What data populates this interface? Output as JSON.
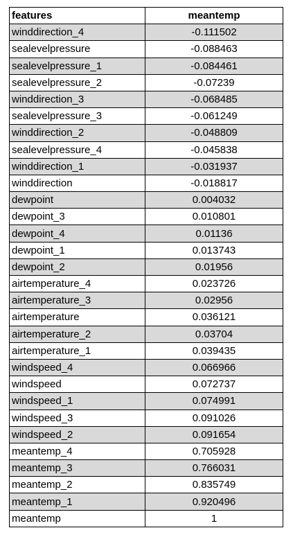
{
  "table": {
    "headers": [
      "features",
      "meantemp"
    ],
    "rows": [
      [
        "winddirection_4",
        "-0.111502"
      ],
      [
        "sealevelpressure",
        "-0.088463"
      ],
      [
        "sealevelpressure_1",
        "-0.084461"
      ],
      [
        "sealevelpressure_2",
        "-0.07239"
      ],
      [
        "winddirection_3",
        "-0.068485"
      ],
      [
        "sealevelpressure_3",
        "-0.061249"
      ],
      [
        "winddirection_2",
        "-0.048809"
      ],
      [
        "sealevelpressure_4",
        "-0.045838"
      ],
      [
        "winddirection_1",
        "-0.031937"
      ],
      [
        "winddirection",
        "-0.018817"
      ],
      [
        "dewpoint",
        "0.004032"
      ],
      [
        "dewpoint_3",
        "0.010801"
      ],
      [
        "dewpoint_4",
        "0.01136"
      ],
      [
        "dewpoint_1",
        "0.013743"
      ],
      [
        "dewpoint_2",
        "0.01956"
      ],
      [
        "airtemperature_4",
        "0.023726"
      ],
      [
        "airtemperature_3",
        "0.02956"
      ],
      [
        "airtemperature",
        "0.036121"
      ],
      [
        "airtemperature_2",
        "0.03704"
      ],
      [
        "airtemperature_1",
        "0.039435"
      ],
      [
        "windspeed_4",
        "0.066966"
      ],
      [
        "windspeed",
        "0.072737"
      ],
      [
        "windspeed_1",
        "0.074991"
      ],
      [
        "windspeed_3",
        "0.091026"
      ],
      [
        "windspeed_2",
        "0.091654"
      ],
      [
        "meantemp_4",
        "0.705928"
      ],
      [
        "meantemp_3",
        "0.766031"
      ],
      [
        "meantemp_2",
        "0.835749"
      ],
      [
        "meantemp_1",
        "0.920496"
      ],
      [
        "meantemp",
        "1"
      ]
    ],
    "shade_color": "#d9d9d9",
    "border_color": "#000000"
  }
}
